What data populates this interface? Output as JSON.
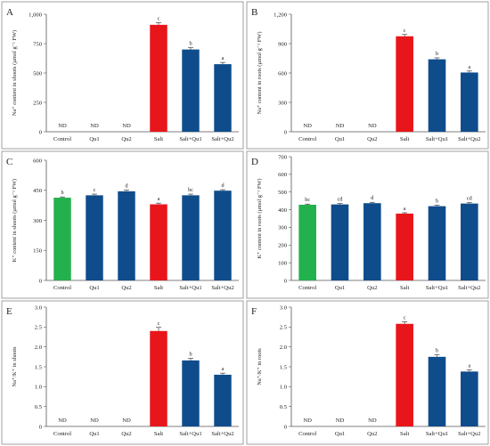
{
  "colors": {
    "control": "#22b14c",
    "salt": "#e8161b",
    "treatment": "#0f4c8c"
  },
  "chart_data": [
    {
      "panel": "A",
      "type": "bar",
      "ylabel": "Na⁺ content in shoots (µmol g⁻¹ FW)",
      "ylim": [
        0,
        1000
      ],
      "yticks": [
        "0",
        "250",
        "500",
        "750",
        "1,000"
      ],
      "categories": [
        "Control",
        "Qu1",
        "Qu2",
        "Salt",
        "Salt+Qu1",
        "Salt+Qu2"
      ],
      "values": [
        null,
        null,
        null,
        910,
        700,
        575
      ],
      "errors": [
        0,
        0,
        0,
        18,
        15,
        15
      ],
      "labels": [
        "ND",
        "ND",
        "ND",
        "c",
        "b",
        "a"
      ]
    },
    {
      "panel": "B",
      "type": "bar",
      "ylabel": "Na⁺ content in roots (µmol g⁻¹ FW)",
      "ylim": [
        0,
        1200
      ],
      "yticks": [
        "0",
        "300",
        "600",
        "900",
        "1,200"
      ],
      "categories": [
        "Control",
        "Qu1",
        "Qu2",
        "Salt",
        "Salt+Qu1",
        "Salt+Qu2"
      ],
      "values": [
        null,
        null,
        null,
        975,
        740,
        605
      ],
      "errors": [
        0,
        0,
        0,
        18,
        15,
        15
      ],
      "labels": [
        "ND",
        "ND",
        "ND",
        "c",
        "b",
        "a"
      ]
    },
    {
      "panel": "C",
      "type": "bar",
      "ylabel": "K⁺ content in shoots (µmol g⁻¹ FW)",
      "ylim": [
        0,
        600
      ],
      "yticks": [
        "0",
        "150",
        "300",
        "450",
        "600"
      ],
      "categories": [
        "Control",
        "Qu1",
        "Qu2",
        "Salt",
        "Salt+Qu1",
        "Salt+Qu2"
      ],
      "values": [
        413,
        425,
        445,
        380,
        425,
        448
      ],
      "errors": [
        4,
        6,
        6,
        6,
        6,
        5
      ],
      "labels": [
        "b",
        "c",
        "d",
        "a",
        "bc",
        "d"
      ]
    },
    {
      "panel": "D",
      "type": "bar",
      "ylabel": "K⁺ content in roots (µmol g⁻¹ FW)",
      "ylim": [
        0,
        700
      ],
      "yticks": [
        "0",
        "100",
        "200",
        "300",
        "400",
        "500",
        "600",
        "700"
      ],
      "categories": [
        "Control",
        "Qu1",
        "Qu2",
        "Salt",
        "Salt+Qu1",
        "Salt+Qu2"
      ],
      "values": [
        428,
        430,
        437,
        378,
        420,
        435
      ],
      "errors": [
        4,
        5,
        5,
        5,
        5,
        5
      ],
      "labels": [
        "bc",
        "cd",
        "d",
        "a",
        "b",
        "cd"
      ]
    },
    {
      "panel": "E",
      "type": "bar",
      "ylabel": "Na⁺/K⁺ in shoots",
      "ylim": [
        0,
        3.0
      ],
      "yticks": [
        "0",
        "0.5",
        "1.0",
        "1.5",
        "2.0",
        "2.5",
        "3.0"
      ],
      "categories": [
        "Control",
        "Qu1",
        "Qu2",
        "Salt",
        "Salt+Qu1",
        "Salt+Qu2"
      ],
      "values": [
        null,
        null,
        null,
        2.4,
        1.66,
        1.3
      ],
      "errors": [
        0,
        0,
        0,
        0.09,
        0.05,
        0.04
      ],
      "labels": [
        "ND",
        "ND",
        "ND",
        "c",
        "b",
        "a"
      ]
    },
    {
      "panel": "F",
      "type": "bar",
      "ylabel": "Na⁺/K⁺ in roots",
      "ylim": [
        0,
        3.0
      ],
      "yticks": [
        "0",
        "0.5",
        "1.0",
        "1.5",
        "2.0",
        "2.5",
        "3.0"
      ],
      "categories": [
        "Control",
        "Qu1",
        "Qu2",
        "Salt",
        "Salt+Qu1",
        "Salt+Qu2"
      ],
      "values": [
        null,
        null,
        null,
        2.58,
        1.75,
        1.38
      ],
      "errors": [
        0,
        0,
        0,
        0.05,
        0.05,
        0.04
      ],
      "labels": [
        "ND",
        "ND",
        "ND",
        "c",
        "b",
        "a"
      ]
    }
  ]
}
